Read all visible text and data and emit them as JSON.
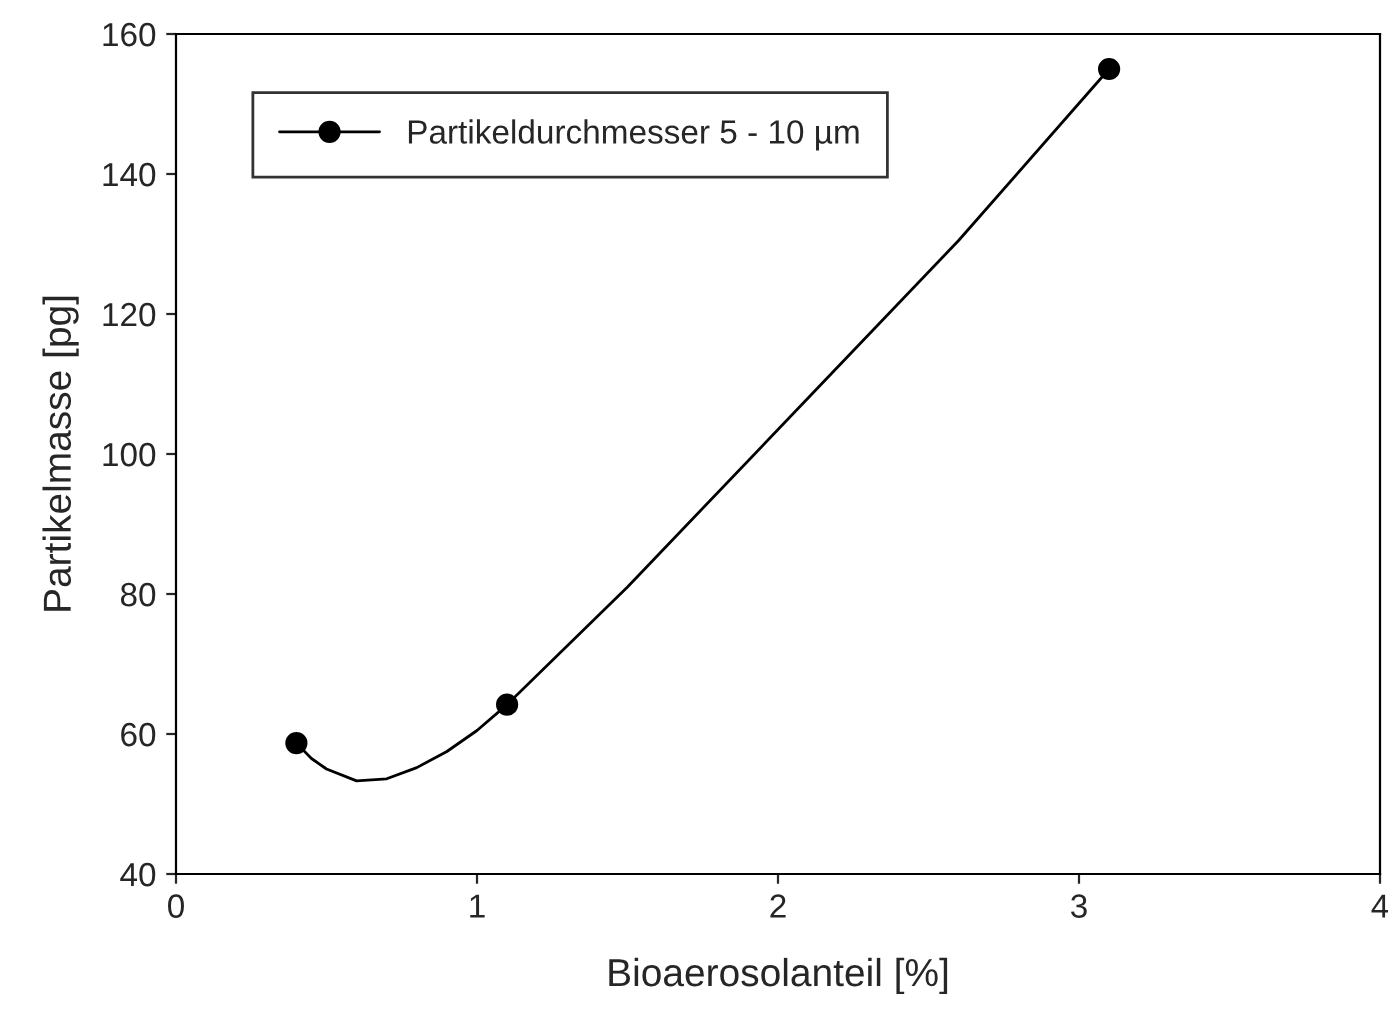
{
  "chart_data": {
    "type": "line",
    "xlabel": "Bioaerosolanteil [%]",
    "ylabel": "Partikelmasse [pg]",
    "series": [
      {
        "marker": "none",
        "color": "#000000",
        "x": [
          0.4,
          0.45,
          0.5,
          0.6,
          0.7,
          0.8,
          0.9,
          1.0,
          1.1,
          1.5,
          2.1,
          2.6,
          3.1
        ],
        "values": [
          58.7,
          56.5,
          55,
          53.3,
          53.6,
          55.2,
          57.5,
          60.5,
          64.2,
          81,
          108,
          130.5,
          155
        ]
      },
      {
        "type": "scatter",
        "marker": "circle",
        "name": "Partikeldurchmesser 5 - 10 µm",
        "color": "#000000",
        "x": [
          0.4,
          1.1,
          3.1
        ],
        "values": [
          58.7,
          64.2,
          155
        ]
      }
    ],
    "xlim": [
      0,
      4
    ],
    "xticks": [
      0,
      1,
      2,
      3,
      4
    ],
    "ylim": [
      40,
      160
    ],
    "yticks": [
      40,
      60,
      80,
      100,
      120,
      140,
      160
    ],
    "line_style": "solid",
    "legend": "top left"
  }
}
